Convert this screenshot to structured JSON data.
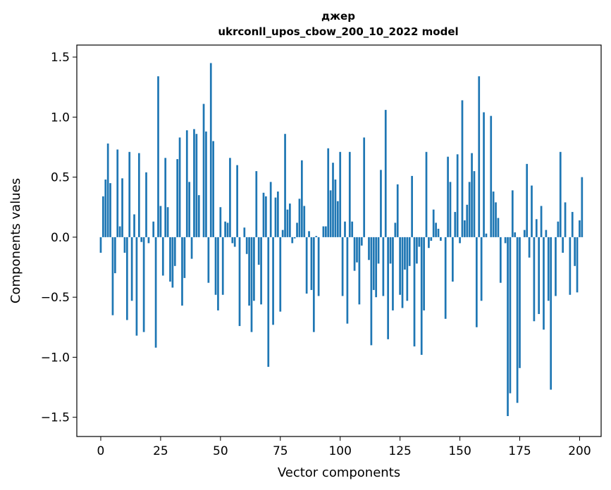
{
  "chart_data": {
    "type": "bar",
    "title_line1": "джер",
    "title_line2": "ukrconll_upos_cbow_200_10_2022 model",
    "xlabel": "Vector components",
    "ylabel": "Components values",
    "xlim": [
      -10,
      209
    ],
    "ylim": [
      -1.66,
      1.6
    ],
    "xticks": [
      0,
      25,
      50,
      75,
      100,
      125,
      150,
      175,
      200
    ],
    "xtick_labels": [
      "0",
      "25",
      "50",
      "75",
      "100",
      "125",
      "150",
      "175",
      "200"
    ],
    "yticks": [
      1.5,
      1.0,
      0.5,
      0.0,
      -0.5,
      -1.0,
      -1.5
    ],
    "ytick_labels": [
      "1.5",
      "1.0",
      "0.5",
      "0.0",
      "−0.5",
      "−1.0",
      "−1.5"
    ],
    "bar_color": "#1f77b4",
    "grid": false,
    "values": [
      -0.13,
      0.34,
      0.48,
      0.78,
      0.45,
      -0.65,
      -0.3,
      0.73,
      0.09,
      0.49,
      -0.13,
      -0.69,
      0.71,
      -0.53,
      0.19,
      -0.82,
      0.7,
      -0.04,
      -0.79,
      0.54,
      -0.05,
      0.0,
      0.13,
      -0.92,
      1.34,
      0.26,
      -0.32,
      0.66,
      0.25,
      -0.37,
      -0.42,
      -0.24,
      0.65,
      0.83,
      -0.57,
      -0.34,
      0.89,
      0.46,
      -0.18,
      0.9,
      0.86,
      0.35,
      0.0,
      1.11,
      0.88,
      -0.38,
      1.45,
      0.8,
      -0.48,
      -0.61,
      0.25,
      -0.48,
      0.13,
      0.12,
      0.66,
      -0.05,
      -0.08,
      0.6,
      -0.74,
      0.0,
      0.08,
      -0.14,
      -0.57,
      -0.79,
      -0.53,
      0.55,
      -0.23,
      -0.56,
      0.37,
      0.34,
      -1.08,
      0.46,
      -0.73,
      0.33,
      0.38,
      -0.62,
      0.06,
      0.86,
      0.23,
      0.28,
      -0.05,
      -0.01,
      0.12,
      0.32,
      0.64,
      0.26,
      -0.47,
      0.05,
      -0.44,
      -0.79,
      0.01,
      -0.49,
      0.0,
      0.09,
      0.09,
      0.74,
      0.39,
      0.62,
      0.48,
      0.3,
      0.71,
      -0.49,
      0.13,
      -0.72,
      0.71,
      0.13,
      -0.28,
      -0.21,
      -0.56,
      -0.07,
      0.83,
      0.0,
      -0.19,
      -0.9,
      -0.44,
      -0.5,
      -0.22,
      0.56,
      -0.49,
      1.06,
      -0.85,
      -0.22,
      -0.61,
      0.12,
      0.44,
      -0.48,
      -0.59,
      -0.27,
      -0.53,
      -0.24,
      0.51,
      -0.91,
      -0.22,
      -0.08,
      -0.98,
      -0.61,
      0.71,
      -0.09,
      -0.03,
      0.23,
      0.12,
      0.07,
      -0.03,
      0.0,
      -0.68,
      0.67,
      0.46,
      -0.37,
      0.21,
      0.69,
      -0.05,
      1.14,
      0.14,
      0.27,
      0.46,
      0.7,
      0.55,
      -0.75,
      1.34,
      -0.53,
      1.04,
      0.03,
      0.0,
      1.01,
      0.38,
      0.29,
      0.16,
      -0.38,
      0.0,
      -0.05,
      -1.49,
      -1.3,
      0.39,
      0.04,
      -1.38,
      -1.09,
      0.0,
      0.06,
      0.61,
      -0.17,
      0.43,
      -0.7,
      0.15,
      -0.64,
      0.26,
      -0.77,
      0.06,
      -0.53,
      -1.27,
      0.0,
      -0.49,
      0.13,
      0.71,
      -0.13,
      0.29,
      0.0,
      -0.48,
      0.21,
      -0.24,
      -0.46,
      0.14,
      0.5
    ]
  }
}
